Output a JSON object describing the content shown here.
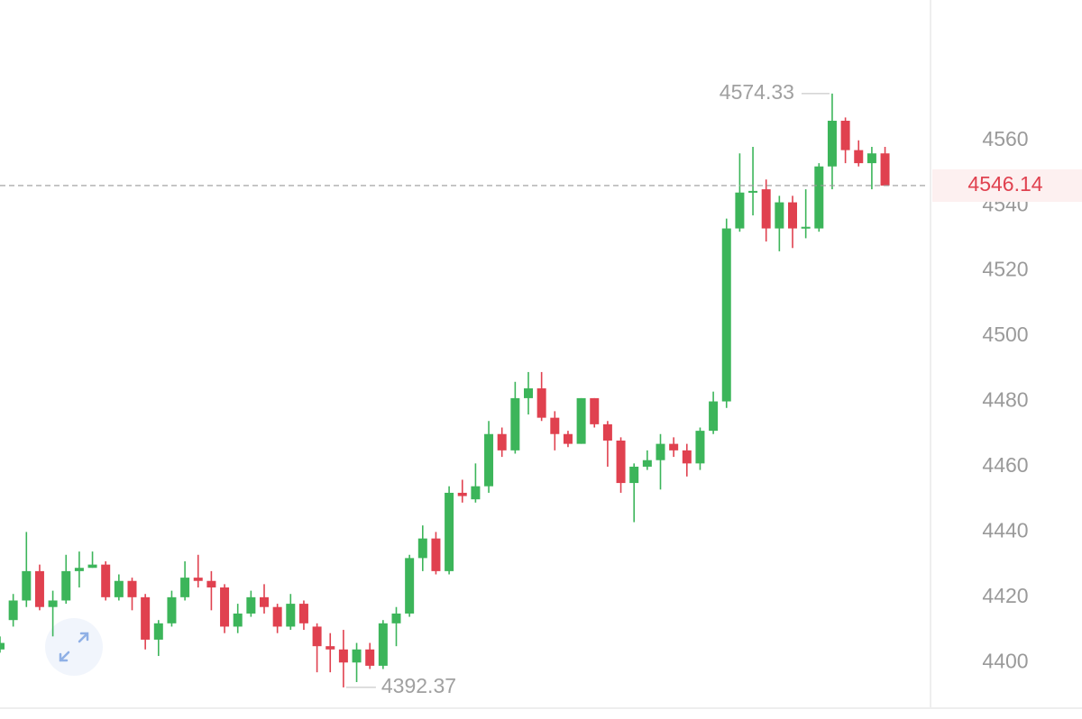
{
  "chart_data": {
    "type": "candlestick",
    "open": [
      4404,
      4413,
      4419,
      4428,
      4417,
      4419,
      4428,
      4429,
      4430,
      4420,
      4425,
      4420,
      4407,
      4412,
      4420,
      4426,
      4425,
      4423,
      4411,
      4415,
      4420,
      4417,
      4411,
      4418,
      4411,
      4405,
      4404,
      4400,
      4404,
      4399,
      4412,
      4415,
      4432,
      4438,
      4428,
      4452,
      4450,
      4454,
      4470,
      4465,
      4481,
      4484,
      4475,
      4470,
      4467,
      4481,
      4473,
      4468,
      4455,
      4460,
      4462,
      4467,
      4465,
      4461,
      4471,
      4480,
      4533,
      4544,
      4545,
      4533,
      4541,
      4533,
      4533,
      4552,
      4566,
      4557,
      4553,
      4556
    ],
    "high": [
      4408,
      4421,
      4440,
      4430,
      4422,
      4433,
      4434,
      4434,
      4431,
      4427,
      4426,
      4421,
      4413,
      4422,
      4431,
      4433,
      4428,
      4424,
      4418,
      4422,
      4424,
      4418,
      4421,
      4419,
      4412,
      4409,
      4410,
      4406,
      4406,
      4413,
      4417,
      4433,
      4442,
      4440,
      4454,
      4456,
      4461,
      4474,
      4472,
      4486,
      4489,
      4489,
      4477,
      4471,
      4481,
      4481,
      4474,
      4469,
      4461,
      4465,
      4470,
      4469,
      4467,
      4472,
      4483,
      4536,
      4556,
      4558,
      4548,
      4543,
      4543,
      4545,
      4553,
      4574.33,
      4567,
      4560,
      4558,
      4558
    ],
    "low": [
      4403,
      4411,
      4417,
      4416,
      4408,
      4418,
      4423,
      4429,
      4419,
      4419,
      4416,
      4404,
      4402,
      4411,
      4419,
      4423,
      4416,
      4409,
      4409,
      4414,
      4415,
      4409,
      4410,
      4410,
      4397,
      4397,
      4392.37,
      4394,
      4398,
      4398,
      4405,
      4414,
      4428,
      4427,
      4427,
      4449,
      4449,
      4452,
      4463,
      4464,
      4476,
      4474,
      4465,
      4466,
      4467,
      4472,
      4460,
      4452,
      4443,
      4459,
      4453,
      4463,
      4457,
      4459,
      4470,
      4478,
      4532,
      4537,
      4529,
      4526,
      4527,
      4530,
      4532,
      4545,
      4553,
      4552,
      4545,
      4546
    ],
    "close": [
      4406,
      4419,
      4428,
      4417,
      4419,
      4428,
      4429,
      4430,
      4420,
      4425,
      4420,
      4407,
      4412,
      4420,
      4426,
      4425,
      4423,
      4411,
      4415,
      4420,
      4417,
      4411,
      4418,
      4412,
      4405,
      4404,
      4400,
      4404,
      4399,
      4412,
      4415,
      4432,
      4438,
      4428,
      4452,
      4451,
      4454,
      4470,
      4465,
      4481,
      4484,
      4475,
      4470,
      4467,
      4481,
      4473,
      4468,
      4455,
      4460,
      4462,
      4467,
      4465,
      4461,
      4471,
      4480,
      4533,
      4544,
      4544.5,
      4533,
      4541,
      4533,
      4533.5,
      4552,
      4566,
      4557,
      4553,
      4556,
      4546.14
    ],
    "up_color": "#3cb55a",
    "down_color": "#e0414f",
    "ylim": [
      4386,
      4603
    ],
    "yticks": [
      4400,
      4420,
      4440,
      4460,
      4480,
      4500,
      4520,
      4540,
      4560
    ],
    "grid": false
  }
}
